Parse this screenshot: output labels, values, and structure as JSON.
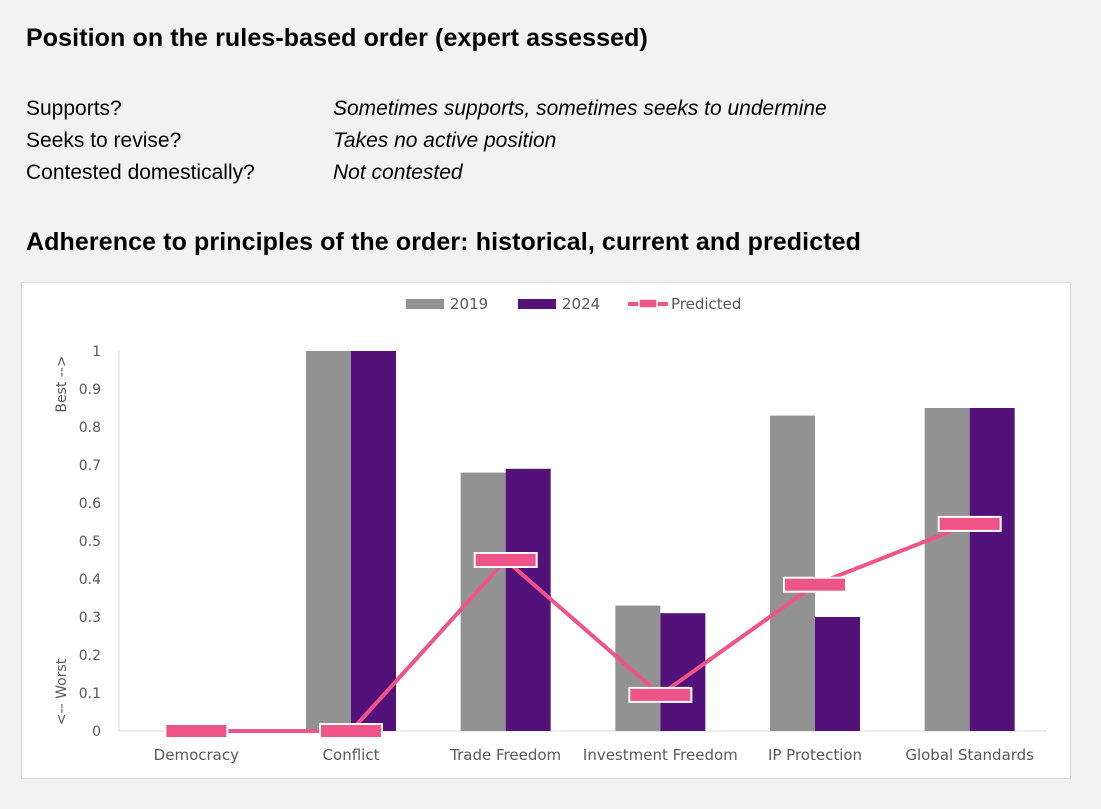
{
  "heading1": "Position on the rules-based order (expert assessed)",
  "position": [
    {
      "label": "Supports?",
      "value": "Sometimes supports, sometimes seeks to undermine"
    },
    {
      "label": "Seeks to revise?",
      "value": "Takes no active position"
    },
    {
      "label": "Contested domestically?",
      "value": "Not contested"
    }
  ],
  "heading2": "Adherence to principles of the order: historical, current and predicted",
  "colors": {
    "series_2019": "#929292",
    "series_2024": "#521279",
    "predicted": "#ef5488",
    "axis": "#d9d9d9",
    "text": "#595959"
  },
  "chart_data": {
    "type": "bar",
    "categories": [
      "Democracy",
      "Conflict",
      "Trade Freedom",
      "Investment Freedom",
      "IP Protection",
      "Global Standards"
    ],
    "series": [
      {
        "name": "2019",
        "values": [
          0,
          1.0,
          0.68,
          0.33,
          0.83,
          0.85
        ]
      },
      {
        "name": "2024",
        "values": [
          0,
          1.0,
          0.69,
          0.31,
          0.3,
          0.85
        ]
      }
    ],
    "predicted": {
      "name": "Predicted",
      "type": "line",
      "values": [
        0.0,
        0.0,
        0.45,
        0.095,
        0.385,
        0.545
      ]
    },
    "ylim": [
      0,
      1
    ],
    "yticks": [
      "0",
      "0.1",
      "0.2",
      "0.3",
      "0.4",
      "0.5",
      "0.6",
      "0.7",
      "0.8",
      "0.9",
      "1"
    ],
    "ylabel_top": "Best -->",
    "ylabel_bottom": "<-- Worst",
    "legend_position": "top-center",
    "grid": false
  }
}
